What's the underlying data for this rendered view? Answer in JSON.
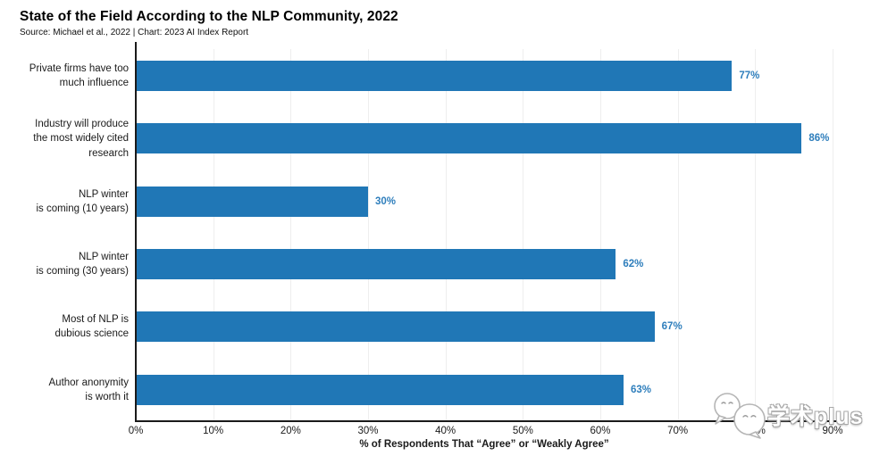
{
  "header": {
    "title": "State of the Field According to the NLP Community, 2022",
    "source": "Source: Michael et al., 2022 | Chart: 2023 AI Index Report"
  },
  "watermark": {
    "text": "学术plus",
    "icon": "chat-bubbles-faces-icon"
  },
  "chart_data": {
    "type": "bar",
    "orientation": "horizontal",
    "title": "State of the Field According to the NLP Community, 2022",
    "source": "Source: Michael et al., 2022 | Chart: 2023 AI Index Report",
    "categories": [
      "Private firms have too\nmuch influence",
      "Industry will produce\nthe most widely cited\nresearch",
      "NLP winter\nis coming (10 years)",
      "NLP winter\nis coming (30 years)",
      "Most of NLP is\ndubious science",
      "Author anonymity\nis worth it"
    ],
    "values": [
      77,
      86,
      30,
      62,
      67,
      63
    ],
    "value_labels": [
      "77%",
      "86%",
      "30%",
      "62%",
      "67%",
      "63%"
    ],
    "xlabel": "% of Respondents That “Agree” or “Weakly Agree”",
    "xlim": [
      0,
      90
    ],
    "x_ticks": [
      "0%",
      "10%",
      "20%",
      "30%",
      "40%",
      "50%",
      "60%",
      "70%",
      "80%",
      "90%"
    ],
    "x_tick_values": [
      0,
      10,
      20,
      30,
      40,
      50,
      60,
      70,
      80,
      90
    ],
    "grid": "faint vertical gridlines at each 10% tick",
    "legend": "none",
    "bar_color": "#2077b6",
    "value_label_color": "#2e7ebc",
    "axis_color": "#1a1a1a"
  }
}
